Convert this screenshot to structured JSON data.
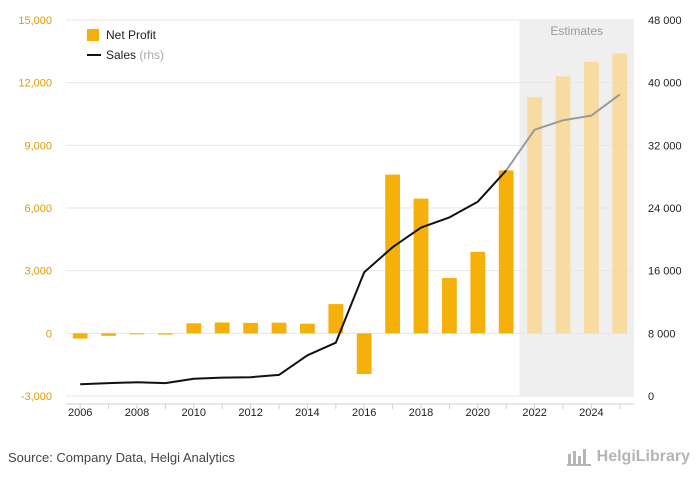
{
  "chart_data": {
    "type": "bar+line",
    "years": [
      2006,
      2007,
      2008,
      2009,
      2010,
      2011,
      2012,
      2013,
      2014,
      2015,
      2016,
      2017,
      2018,
      2019,
      2020,
      2021,
      2022,
      2023,
      2024,
      2025
    ],
    "series": [
      {
        "name": "Net Profit",
        "axis": "left",
        "type": "bar",
        "values": [
          -250,
          -120,
          -20,
          -60,
          480,
          520,
          500,
          510,
          460,
          1400,
          -1950,
          7600,
          6450,
          2650,
          3900,
          7800,
          11300,
          12300,
          13000,
          13400
        ]
      },
      {
        "name": "Sales",
        "suffix": "(rhs)",
        "axis": "right",
        "type": "line",
        "values": [
          1500,
          1650,
          1750,
          1650,
          2200,
          2350,
          2400,
          2700,
          5200,
          6800,
          15800,
          19000,
          21500,
          22800,
          24800,
          28800,
          34000,
          35200,
          35800,
          38500
        ]
      }
    ],
    "estimates_from_year": 2022,
    "estimates_label": "Estimates",
    "left_axis": {
      "min": -3000,
      "max": 15000,
      "ticks": [
        -3000,
        0,
        3000,
        6000,
        9000,
        12000,
        15000
      ],
      "tick_labels": [
        "-3,000",
        "0",
        "3,000",
        "6,000",
        "9,000",
        "12,000",
        "15,000"
      ]
    },
    "right_axis": {
      "min": 0,
      "max": 48000,
      "ticks": [
        0,
        8000,
        16000,
        24000,
        32000,
        40000,
        48000
      ],
      "tick_labels": [
        "0",
        "8 000",
        "16 000",
        "24 000",
        "32 000",
        "40 000",
        "48 000"
      ]
    },
    "x_tick_labels": [
      "2006",
      "2008",
      "2010",
      "2012",
      "2014",
      "2016",
      "2018",
      "2020",
      "2022",
      "2024"
    ],
    "legend": {
      "position": "top-left"
    }
  },
  "colors": {
    "bar": "#f5b00a",
    "bar_estimate": "#f7dba0",
    "line": "#111111",
    "line_estimate": "#9a9a9a",
    "estimate_band": "#efefef",
    "left_tick": "#e09a00",
    "grid": "#e6e6e6"
  },
  "footer": {
    "source": "Source: Company Data, Helgi Analytics",
    "brand": "HelgiLibrary"
  }
}
